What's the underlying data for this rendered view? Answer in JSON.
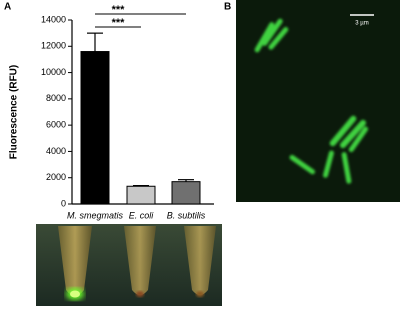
{
  "panel_labels": [
    "A",
    "B"
  ],
  "scale_bar_label": "3 µm",
  "chart_data": {
    "type": "bar",
    "ylabel": "Fluorescence (RFU)",
    "categories": [
      "M. smegmatis",
      "E. coli",
      "B. subtilis"
    ],
    "values": [
      11600,
      1350,
      1700
    ],
    "errors": [
      1400,
      50,
      150
    ],
    "colors": [
      "#000000",
      "#c8c8c8",
      "#707070"
    ],
    "ylim": [
      0,
      14000
    ],
    "yticks": [
      0,
      2000,
      4000,
      6000,
      8000,
      10000,
      12000,
      14000
    ],
    "annotations": [
      "***",
      "***"
    ]
  }
}
